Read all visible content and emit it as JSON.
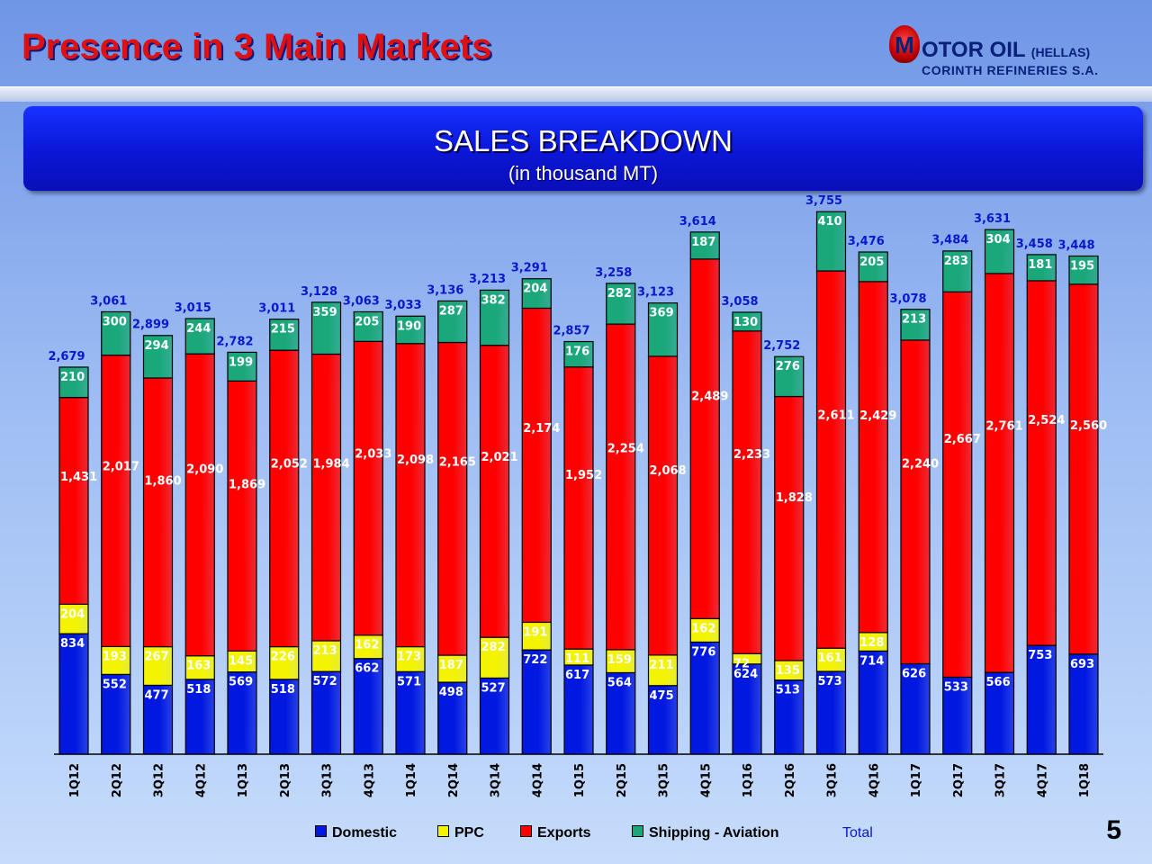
{
  "header": {
    "title": "Presence in 3 Main Markets",
    "logo_letter": "M",
    "logo_name": "OTOR OIL",
    "logo_suffix": "(HELLAS)",
    "logo_subtitle": "CORINTH REFINERIES S.A."
  },
  "banner": {
    "title": "SALES BREAKDOWN",
    "subtitle": "(in thousand MT)"
  },
  "colors": {
    "domestic": "#0018e0",
    "ppc": "#f4f400",
    "exports": "#ff0000",
    "shipping": "#1aa87a",
    "total": "#0a18cc"
  },
  "chart_data": {
    "type": "bar",
    "stacked": true,
    "title": "SALES BREAKDOWN",
    "subtitle": "(in thousand MT)",
    "ylim": [
      0,
      3800
    ],
    "categories": [
      "1Q12",
      "2Q12",
      "3Q12",
      "4Q12",
      "1Q13",
      "2Q13",
      "3Q13",
      "4Q13",
      "1Q14",
      "2Q14",
      "3Q14",
      "4Q14",
      "1Q15",
      "2Q15",
      "3Q15",
      "4Q15",
      "1Q16",
      "2Q16",
      "3Q16",
      "4Q16",
      "1Q17",
      "2Q17",
      "3Q17",
      "4Q17",
      "1Q18"
    ],
    "series": [
      {
        "name": "Domestic",
        "key": "domestic",
        "values": [
          834,
          552,
          477,
          518,
          569,
          518,
          572,
          662,
          571,
          498,
          527,
          722,
          617,
          564,
          475,
          776,
          624,
          513,
          573,
          714,
          626,
          533,
          566,
          753,
          693
        ],
        "labels": [
          "834",
          "552",
          "477",
          "518",
          "569",
          "518",
          "572",
          "662",
          "571",
          "498",
          "527",
          "722",
          "617",
          "564",
          "475",
          "776",
          "624",
          "513",
          "573",
          "714",
          "626",
          "533",
          "566",
          "753",
          "693"
        ]
      },
      {
        "name": "PPC",
        "key": "ppc",
        "values": [
          204,
          193,
          267,
          163,
          145,
          226,
          213,
          162,
          173,
          187,
          282,
          191,
          111,
          159,
          211,
          162,
          72,
          135,
          161,
          128,
          0,
          0,
          0,
          0,
          0
        ],
        "labels": [
          "204",
          "193",
          "267",
          "163",
          "145",
          "226",
          "213",
          "162",
          "173",
          "187",
          "282",
          "191",
          "111",
          "159",
          "211",
          "162",
          "72",
          "135",
          "161",
          "128",
          "",
          "",
          "",
          "",
          ""
        ]
      },
      {
        "name": "Exports",
        "key": "exports",
        "values": [
          1431,
          2017,
          1860,
          2090,
          1869,
          2052,
          1984,
          2033,
          2098,
          2165,
          2021,
          2174,
          1952,
          2254,
          2068,
          2489,
          2233,
          1828,
          2611,
          2429,
          2240,
          2667,
          2761,
          2524,
          2560
        ],
        "labels": [
          "1,431",
          "2,017",
          "1,860",
          "2,090",
          "1,869",
          "2,052",
          "1,984",
          "2,033",
          "2,098",
          "2,165",
          "2,021",
          "2,174",
          "1,952",
          "2,254",
          "2,068",
          "2,489",
          "2,233",
          "1,828",
          "2,611",
          "2,429",
          "2,240",
          "2,667",
          "2,761",
          "2,524",
          "2,560"
        ]
      },
      {
        "name": "Shipping - Aviation",
        "key": "shipping",
        "values": [
          210,
          300,
          294,
          244,
          199,
          215,
          359,
          205,
          190,
          287,
          382,
          204,
          176,
          282,
          369,
          187,
          130,
          276,
          410,
          205,
          213,
          283,
          304,
          181,
          195
        ],
        "labels": [
          "210",
          "300",
          "294",
          "244",
          "199",
          "215",
          "359",
          "205",
          "190",
          "287",
          "382",
          "204",
          "176",
          "282",
          "369",
          "187",
          "130",
          "276",
          "410",
          "205",
          "213",
          "283",
          "304",
          "181",
          "195"
        ]
      }
    ],
    "totals": [
      2679,
      3061,
      2899,
      3015,
      2782,
      3011,
      3128,
      3063,
      3033,
      3136,
      3213,
      3291,
      2857,
      3258,
      3123,
      3614,
      3058,
      2752,
      3755,
      3476,
      3078,
      3484,
      3631,
      3458,
      3448
    ],
    "total_labels": [
      "2,679",
      "3,061",
      "2,899",
      "3,015",
      "2,782",
      "3,011",
      "3,128",
      "3,063",
      "3,033",
      "3,136",
      "3,213",
      "3,291",
      "2,857",
      "3,258",
      "3,123",
      "3,614",
      "3,058",
      "2,752",
      "3,755",
      "3,476",
      "3,078",
      "3,484",
      "3,631",
      "3,458",
      "3,448"
    ],
    "legend": [
      {
        "key": "domestic",
        "label": "Domestic"
      },
      {
        "key": "ppc",
        "label": "PPC"
      },
      {
        "key": "exports",
        "label": "Exports"
      },
      {
        "key": "shipping",
        "label": "Shipping - Aviation"
      }
    ],
    "total_legend_label": "Total",
    "legend_position": "bottom",
    "grid": false
  },
  "footer": {
    "page_number": "5"
  }
}
